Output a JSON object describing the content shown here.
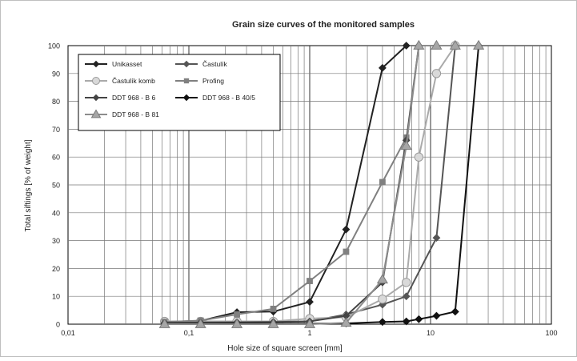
{
  "chart_data": {
    "type": "line",
    "title": "Grain size curves of the monitored samples",
    "xlabel": "Hole size of square screen  [mm]",
    "ylabel": "Total siftings  [% of weight]",
    "x_scale": "log",
    "xlim": [
      0.01,
      100
    ],
    "ylim": [
      0,
      100
    ],
    "x_tick_labels": [
      "0,01",
      "0,1",
      "1",
      "10",
      "100"
    ],
    "y_tick_labels": [
      "0",
      "10",
      "20",
      "30",
      "40",
      "50",
      "60",
      "70",
      "80",
      "90",
      "100"
    ],
    "grid": true,
    "legend_position": "top-left",
    "series": [
      {
        "name": "Unikasset",
        "color": "#222222",
        "marker": "diamond",
        "x": [
          0.063,
          0.125,
          0.25,
          0.5,
          1,
          2,
          4,
          6.3
        ],
        "y": [
          0.8,
          1.2,
          4.3,
          4.5,
          8,
          34,
          92,
          100
        ]
      },
      {
        "name": "Častulík",
        "color": "#555555",
        "marker": "diamond",
        "x": [
          0.063,
          0.125,
          0.25,
          0.5,
          1,
          2,
          4,
          6.3,
          11.2,
          16
        ],
        "y": [
          0.3,
          0.4,
          0.6,
          0.8,
          1,
          3.5,
          7,
          10,
          31,
          100
        ]
      },
      {
        "name": "Častulík komb",
        "color": "#aaaaaa",
        "marker": "circle",
        "x": [
          0.063,
          0.125,
          0.25,
          0.5,
          1,
          2,
          4,
          6.3,
          8,
          11.2,
          16
        ],
        "y": [
          1,
          1,
          1,
          1,
          2,
          2.5,
          9,
          15,
          60,
          90,
          100
        ]
      },
      {
        "name": "Profing",
        "color": "#808080",
        "marker": "square",
        "x": [
          0.063,
          0.125,
          0.25,
          0.5,
          1,
          2,
          4,
          6.3
        ],
        "y": [
          0.8,
          1.3,
          3.5,
          5.5,
          15.5,
          26,
          51,
          67
        ]
      },
      {
        "name": "DDT 968 - B 6",
        "color": "#444444",
        "marker": "diamond",
        "x": [
          0.063,
          0.125,
          0.25,
          0.5,
          1,
          2,
          4,
          6.3,
          8
        ],
        "y": [
          0.5,
          0.6,
          0.7,
          0.8,
          1,
          3,
          15,
          66,
          100
        ]
      },
      {
        "name": "DDT 968 - B 40/5",
        "color": "#111111",
        "marker": "diamond",
        "x": [
          0.063,
          0.125,
          0.25,
          0.5,
          1,
          2,
          4,
          6.3,
          8,
          11.2,
          16,
          25
        ],
        "y": [
          0.1,
          0.1,
          0.2,
          0.2,
          0.2,
          0.3,
          0.8,
          1,
          1.8,
          3,
          4.5,
          100
        ]
      },
      {
        "name": "DDT 968 - B 81",
        "color": "#8c8c8c",
        "marker": "triangle",
        "x": [
          0.063,
          0.125,
          0.25,
          0.5,
          1,
          2,
          4,
          6.3,
          8,
          11.2,
          16,
          25
        ],
        "y": [
          0,
          0,
          0,
          0,
          0,
          0.5,
          16,
          64,
          100,
          100,
          100,
          100
        ]
      }
    ]
  }
}
